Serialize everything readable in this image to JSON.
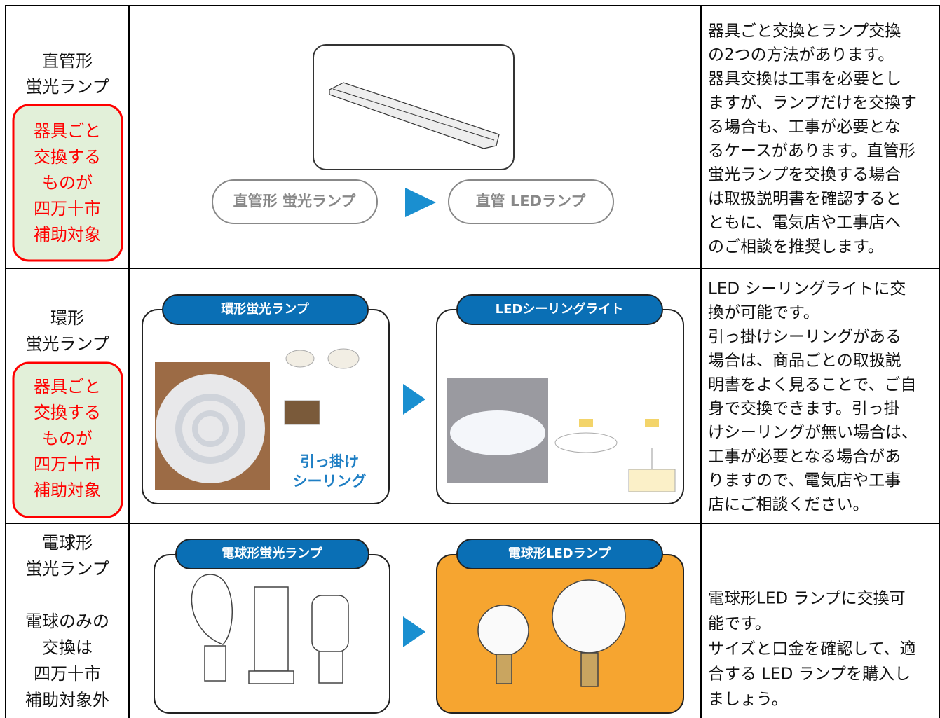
{
  "rows": [
    {
      "lamp": [
        "直管形",
        "蛍光ランプ"
      ],
      "note": [
        "器具ごと",
        "交換する",
        "ものが",
        "四万十市",
        "補助対象"
      ],
      "before": "直管形 蛍光ランプ",
      "after": "直管 LEDランプ",
      "description": [
        "器具ごと交換とランプ交換",
        "の2つの方法があります。",
        "器具交換は工事を必要とし",
        "ますが、ランプだけを交換す",
        "る場合も、工事が必要とな",
        "るケースがあります。直管形",
        "蛍光ランプを交換する場合",
        "は取扱説明書を確認すると",
        "ともに、電気店や工事店へ",
        "のご相談を推奨します。"
      ]
    },
    {
      "lamp": [
        "環形",
        "蛍光ランプ"
      ],
      "note": [
        "器具ごと",
        "交換する",
        "ものが",
        "四万十市",
        "補助対象"
      ],
      "before": "環形蛍光ランプ",
      "after": "LEDシーリングライト",
      "fitting": [
        "引っ掛け",
        "シーリング"
      ],
      "description": [
        "LED シーリングライトに交",
        "換が可能です。",
        "引っ掛けシーリングがある",
        "場合は、商品ごとの取扱説",
        "明書をよく見ることで、ご自",
        "身で交換できます。引っ掛",
        "けシーリングが無い場合は、",
        "工事が必要となる場合があ",
        "りますので、電気店や工事",
        "店にご相談ください。"
      ]
    },
    {
      "lamp": [
        "電球形",
        "蛍光ランプ"
      ],
      "note": [
        "電球のみの",
        "交換は",
        "四万十市",
        "補助対象外"
      ],
      "before": "電球形蛍光ランプ",
      "after": "電球形LEDランプ",
      "description": [
        "電球形LED ランプに交換可",
        "能です。",
        "サイズと口金を確認して、適",
        "合する LED ランプを購入し",
        "ましょう。"
      ]
    }
  ]
}
